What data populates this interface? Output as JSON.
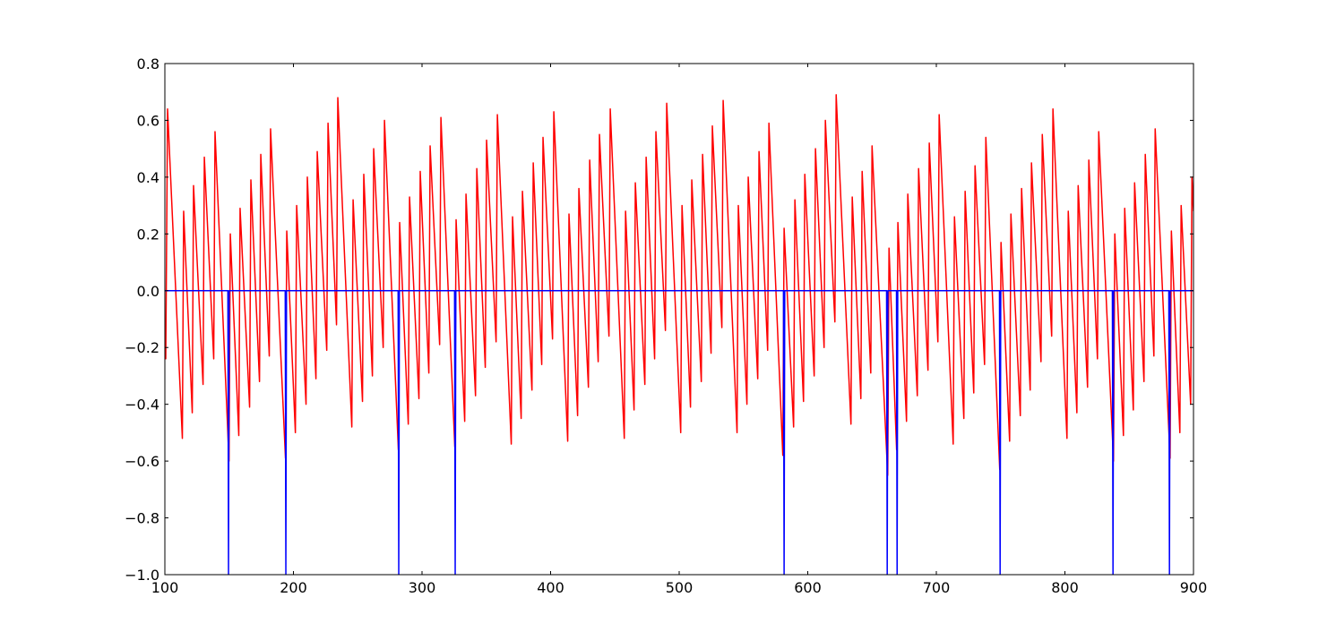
{
  "chart_data": {
    "type": "line",
    "xlim": [
      100,
      900
    ],
    "ylim": [
      -1.0,
      0.8
    ],
    "xticks": [
      100,
      200,
      300,
      400,
      500,
      600,
      700,
      800,
      900
    ],
    "yticks": [
      {
        "value": -1.0,
        "label": "−1.0"
      },
      {
        "value": -0.8,
        "label": "−0.8"
      },
      {
        "value": -0.6,
        "label": "−0.6"
      },
      {
        "value": -0.4,
        "label": "−0.4"
      },
      {
        "value": -0.2,
        "label": "−0.2"
      },
      {
        "value": 0.0,
        "label": "0.0"
      },
      0.2,
      0.4,
      0.6,
      0.8
    ],
    "grid": false,
    "series": [
      {
        "color": "#ff0000",
        "x": [
          100,
          100.7,
          102.1,
          113.6,
          114.6,
          121.3,
          122.3,
          129.7,
          130.7,
          138.0,
          139.0,
          149.9,
          150.9,
          157.5,
          158.5,
          165.9,
          166.9,
          173.6,
          174.6,
          181.2,
          182.2,
          193.8,
          194.8,
          201.5,
          202.5,
          209.8,
          210.8,
          217.5,
          218.5,
          225.9,
          226.9,
          233.5,
          234.5,
          245.4,
          246.4,
          253.7,
          254.7,
          261.4,
          262.4,
          269.8,
          270.8,
          281.6,
          282.6,
          289.3,
          290.3,
          297.6,
          298.6,
          305.3,
          306.3,
          313.7,
          314.7,
          325.5,
          326.5,
          333.2,
          334.2,
          341.6,
          342.6,
          349.2,
          350.2,
          357.6,
          358.6,
          369.4,
          370.4,
          377.1,
          378.1,
          385.5,
          386.5,
          393.1,
          394.1,
          401.5,
          402.5,
          413.3,
          414.3,
          421.0,
          422.0,
          429.4,
          430.4,
          437.0,
          438.0,
          445.4,
          446.4,
          457.3,
          458.3,
          464.9,
          465.9,
          473.3,
          474.3,
          480.9,
          481.9,
          489.3,
          490.3,
          501.2,
          502.2,
          508.8,
          509.8,
          517.2,
          518.2,
          524.8,
          525.8,
          533.2,
          534.2,
          545.0,
          546.0,
          552.7,
          553.7,
          561.1,
          562.1,
          568.8,
          569.8,
          580.6,
          581.6,
          589.0,
          590.0,
          596.7,
          597.7,
          605.0,
          606.0,
          612.7,
          613.7,
          621.1,
          622.1,
          633.6,
          634.6,
          641.3,
          642.3,
          649.0,
          650.0,
          662.2,
          663.2,
          669.1,
          670.1,
          676.8,
          677.8,
          685.2,
          686.2,
          693.5,
          694.5,
          701.2,
          702.2,
          713.1,
          714.1,
          721.4,
          722.4,
          729.1,
          730.1,
          737.5,
          738.5,
          749.3,
          750.3,
          757.0,
          758.0,
          765.3,
          766.3,
          773.0,
          774.0,
          781.4,
          782.4,
          789.7,
          790.7,
          801.6,
          802.6,
          809.3,
          810.3,
          817.6,
          818.6,
          825.3,
          826.3,
          837.8,
          838.8,
          845.5,
          846.5,
          853.2,
          854.2,
          861.5,
          862.5,
          869.2,
          870.2,
          881.8,
          882.8,
          889.4,
          890.4,
          897.8,
          898.8,
          900
        ],
        "values": [
          -0.13,
          -0.24,
          0.64,
          -0.52,
          0.28,
          -0.43,
          0.37,
          -0.33,
          0.47,
          -0.24,
          0.56,
          -0.6,
          0.2,
          -0.51,
          0.29,
          -0.41,
          0.39,
          -0.32,
          0.48,
          -0.23,
          0.57,
          -0.59,
          0.21,
          -0.5,
          0.3,
          -0.4,
          0.4,
          -0.31,
          0.49,
          -0.21,
          0.59,
          -0.12,
          0.68,
          -0.48,
          0.32,
          -0.39,
          0.41,
          -0.3,
          0.5,
          -0.2,
          0.6,
          -0.56,
          0.24,
          -0.47,
          0.33,
          -0.38,
          0.42,
          -0.29,
          0.51,
          -0.19,
          0.61,
          -0.55,
          0.25,
          -0.46,
          0.34,
          -0.37,
          0.43,
          -0.27,
          0.53,
          -0.18,
          0.62,
          -0.54,
          0.26,
          -0.45,
          0.35,
          -0.35,
          0.45,
          -0.26,
          0.54,
          -0.17,
          0.63,
          -0.53,
          0.27,
          -0.44,
          0.36,
          -0.34,
          0.46,
          -0.25,
          0.55,
          -0.16,
          0.64,
          -0.52,
          0.28,
          -0.42,
          0.38,
          -0.33,
          0.47,
          -0.24,
          0.56,
          -0.14,
          0.66,
          -0.5,
          0.3,
          -0.41,
          0.39,
          -0.32,
          0.48,
          -0.22,
          0.58,
          -0.13,
          0.67,
          -0.5,
          0.3,
          -0.4,
          0.4,
          -0.31,
          0.49,
          -0.21,
          0.59,
          -0.58,
          0.22,
          -0.48,
          0.32,
          -0.39,
          0.41,
          -0.3,
          0.5,
          -0.2,
          0.6,
          -0.11,
          0.69,
          -0.47,
          0.33,
          -0.38,
          0.42,
          -0.29,
          0.51,
          -0.65,
          0.15,
          -0.56,
          0.24,
          -0.46,
          0.34,
          -0.37,
          0.43,
          -0.28,
          0.52,
          -0.18,
          0.62,
          -0.54,
          0.26,
          -0.45,
          0.35,
          -0.36,
          0.44,
          -0.26,
          0.54,
          -0.63,
          0.17,
          -0.53,
          0.27,
          -0.44,
          0.36,
          -0.35,
          0.45,
          -0.25,
          0.55,
          -0.16,
          0.64,
          -0.52,
          0.28,
          -0.43,
          0.37,
          -0.34,
          0.46,
          -0.24,
          0.56,
          -0.6,
          0.2,
          -0.51,
          0.29,
          -0.42,
          0.38,
          -0.32,
          0.48,
          -0.23,
          0.57,
          -0.59,
          0.21,
          -0.5,
          0.3,
          -0.4,
          0.4,
          0.28
        ]
      },
      {
        "color": "#0000ff",
        "x": [
          100,
          149.0,
          149.5,
          150.0,
          193.6,
          194.1,
          194.6,
          281.4,
          281.9,
          282.4,
          325.3,
          325.8,
          326.3,
          581.1,
          581.6,
          582.1,
          661.3,
          661.8,
          662.3,
          669.0,
          669.5,
          670.0,
          749.1,
          749.6,
          750.1,
          836.9,
          837.4,
          837.9,
          880.8,
          881.3,
          881.8,
          900
        ],
        "values": [
          0,
          0,
          -1,
          0,
          0,
          -1,
          0,
          0,
          -1,
          0,
          0,
          -1,
          0,
          0,
          -1,
          0,
          0,
          -1,
          0,
          0,
          -1,
          0,
          0,
          -1,
          0,
          0,
          -1,
          0,
          0,
          -1,
          0,
          0
        ]
      }
    ]
  }
}
